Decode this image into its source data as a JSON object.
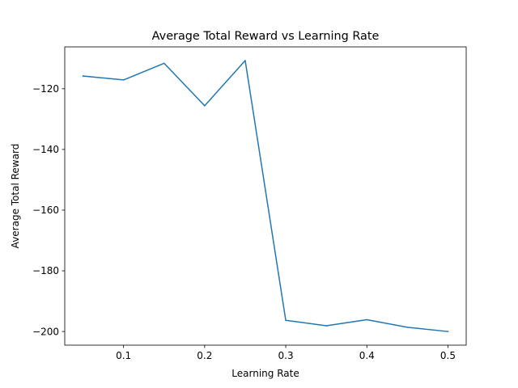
{
  "chart_data": {
    "type": "line",
    "title": "Average Total Reward vs Learning Rate",
    "xlabel": "Learning Rate",
    "ylabel": "Average Total Reward",
    "x": [
      0.05,
      0.1,
      0.15,
      0.2,
      0.25,
      0.3,
      0.35,
      0.4,
      0.45,
      0.5
    ],
    "series": [
      {
        "values": [
          -115.8,
          -117.1,
          -111.6,
          -125.6,
          -110.7,
          -196.3,
          -198.1,
          -196.1,
          -198.6,
          -200.0
        ]
      }
    ],
    "xlim": [
      0.0275,
      0.5225
    ],
    "ylim": [
      -204.5,
      -106.2
    ],
    "xticks": [
      0.1,
      0.2,
      0.3,
      0.4,
      0.5
    ],
    "xtick_labels": [
      "0.1",
      "0.2",
      "0.3",
      "0.4",
      "0.5"
    ],
    "yticks": [
      -120,
      -140,
      -160,
      -180,
      -200
    ],
    "ytick_labels": [
      "−120",
      "−140",
      "−160",
      "−180",
      "−200"
    ],
    "grid": false,
    "line_color": "#1f77b4"
  }
}
